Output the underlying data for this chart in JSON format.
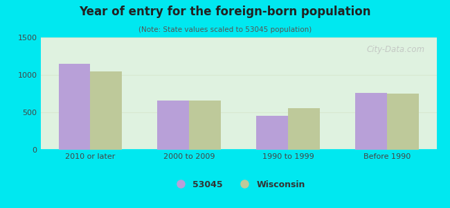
{
  "title": "Year of entry for the foreign-born population",
  "subtitle": "(Note: State values scaled to 53045 population)",
  "categories": [
    "2010 or later",
    "2000 to 2009",
    "1990 to 1999",
    "Before 1990"
  ],
  "values_53045": [
    1150,
    660,
    450,
    760
  ],
  "values_wisconsin": [
    1050,
    660,
    555,
    750
  ],
  "color_53045": "#b8a0d8",
  "color_wisconsin": "#bec99a",
  "background_outer": "#00e8f0",
  "background_inner": "#dff2e0",
  "ylim": [
    0,
    1500
  ],
  "yticks": [
    0,
    500,
    1000,
    1500
  ],
  "legend_label_53045": "53045",
  "legend_label_wisconsin": "Wisconsin",
  "bar_width": 0.32,
  "watermark": "City-Data.com"
}
